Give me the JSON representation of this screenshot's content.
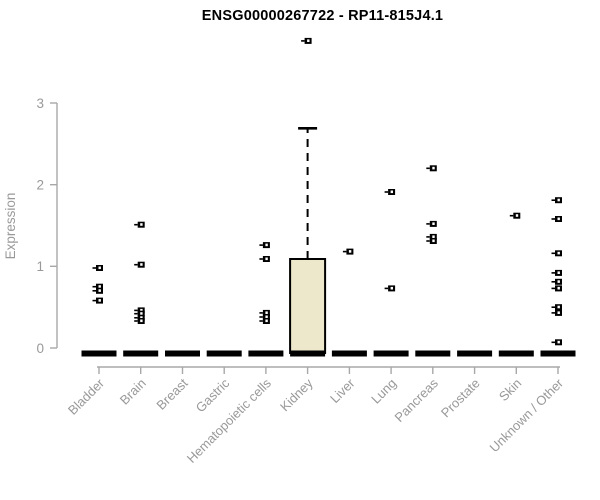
{
  "chart_data": {
    "type": "boxplot",
    "title": "ENSG00000267722 - RP11-815J4.1",
    "ylabel": "Expression",
    "ylim": [
      0,
      3
    ],
    "yticks": [
      0,
      1,
      2,
      3
    ],
    "grid": false,
    "legend": "none",
    "categories": [
      "Bladder",
      "Brain",
      "Breast",
      "Gastric",
      "Hematopoietic cells",
      "Kidney",
      "Liver",
      "Lung",
      "Pancreas",
      "Prostate",
      "Skin",
      "Unknown / Other"
    ],
    "series": [
      {
        "category": "Bladder",
        "median": 0,
        "points": [
          0.98,
          0.75,
          0.7,
          0.58
        ]
      },
      {
        "category": "Brain",
        "median": 0,
        "points": [
          1.51,
          1.02,
          0.46,
          0.42,
          0.37,
          0.33
        ]
      },
      {
        "category": "Breast",
        "median": 0,
        "points": []
      },
      {
        "category": "Gastric",
        "median": 0,
        "points": []
      },
      {
        "category": "Hematopoietic cells",
        "median": 0,
        "points": [
          1.26,
          1.09,
          0.43,
          0.38,
          0.33
        ]
      },
      {
        "category": "Kidney",
        "median": 0,
        "box": {
          "q1": 0,
          "q3": 1.09,
          "whisker_low": 0,
          "whisker_high": 2.69
        },
        "points": [
          3.76
        ]
      },
      {
        "category": "Liver",
        "median": 0,
        "points": [
          1.18
        ]
      },
      {
        "category": "Lung",
        "median": 0,
        "points": [
          1.91,
          0.73
        ]
      },
      {
        "category": "Pancreas",
        "median": 0,
        "points": [
          2.2,
          1.52,
          1.36,
          1.31
        ]
      },
      {
        "category": "Prostate",
        "median": 0,
        "points": []
      },
      {
        "category": "Skin",
        "median": 0,
        "points": [
          1.62
        ]
      },
      {
        "category": "Unknown / Other",
        "median": 0,
        "points": [
          1.81,
          1.58,
          1.16,
          0.92,
          0.81,
          0.73,
          0.5,
          0.43,
          0.07
        ]
      }
    ],
    "colors": {
      "box_fill": "#ede7cc",
      "box_stroke": "#000000",
      "median_bar": "#000000",
      "point": "#000000",
      "axis": "#a8a8a8",
      "tick_label": "#999999",
      "title": "#000000"
    }
  }
}
